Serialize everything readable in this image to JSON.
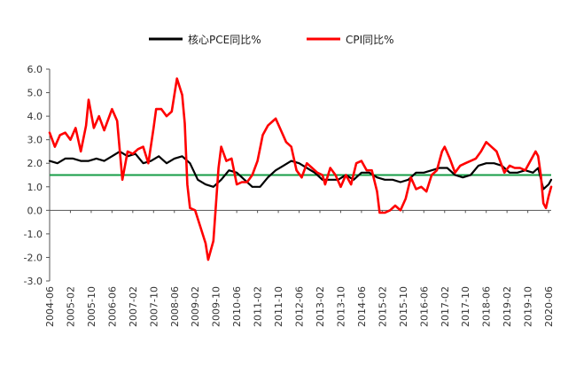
{
  "chart_data": {
    "type": "line",
    "title": "",
    "xlabel": "",
    "ylabel": "",
    "ylim": [
      -3.0,
      6.0
    ],
    "yticks": [
      "6.0",
      "5.0",
      "4.0",
      "3.0",
      "2.0",
      "1.0",
      "0.0",
      "-1.0",
      "-2.0",
      "-3.0"
    ],
    "x_tick_labels": [
      "2004-06",
      "2005-02",
      "2005-10",
      "2006-06",
      "2007-02",
      "2007-10",
      "2008-06",
      "2009-02",
      "2009-10",
      "2010-06",
      "2011-02",
      "2011-10",
      "2012-06",
      "2013-02",
      "2013-10",
      "2014-06",
      "2015-02",
      "2015-10",
      "2016-06",
      "2017-02",
      "2017-10",
      "2018-06",
      "2019-02",
      "2019-10",
      "2020-06"
    ],
    "x_start": "2004-06",
    "x_end": "2020-07",
    "legend_position": "top",
    "grid": false,
    "series": [
      {
        "name": "核心PCE同比%",
        "color": "#000000",
        "points": [
          [
            "2004-06",
            2.1
          ],
          [
            "2004-09",
            2.0
          ],
          [
            "2004-12",
            2.2
          ],
          [
            "2005-03",
            2.2
          ],
          [
            "2005-06",
            2.1
          ],
          [
            "2005-09",
            2.1
          ],
          [
            "2005-12",
            2.2
          ],
          [
            "2006-03",
            2.1
          ],
          [
            "2006-06",
            2.3
          ],
          [
            "2006-09",
            2.5
          ],
          [
            "2006-12",
            2.3
          ],
          [
            "2007-03",
            2.4
          ],
          [
            "2007-06",
            2.0
          ],
          [
            "2007-09",
            2.1
          ],
          [
            "2007-12",
            2.3
          ],
          [
            "2008-03",
            2.0
          ],
          [
            "2008-06",
            2.2
          ],
          [
            "2008-09",
            2.3
          ],
          [
            "2008-12",
            2.0
          ],
          [
            "2009-03",
            1.3
          ],
          [
            "2009-06",
            1.1
          ],
          [
            "2009-09",
            1.0
          ],
          [
            "2009-12",
            1.3
          ],
          [
            "2010-03",
            1.7
          ],
          [
            "2010-06",
            1.6
          ],
          [
            "2010-09",
            1.3
          ],
          [
            "2010-12",
            1.0
          ],
          [
            "2011-03",
            1.0
          ],
          [
            "2011-06",
            1.4
          ],
          [
            "2011-09",
            1.7
          ],
          [
            "2011-12",
            1.9
          ],
          [
            "2012-03",
            2.1
          ],
          [
            "2012-06",
            2.0
          ],
          [
            "2012-09",
            1.8
          ],
          [
            "2012-12",
            1.6
          ],
          [
            "2013-03",
            1.3
          ],
          [
            "2013-06",
            1.3
          ],
          [
            "2013-09",
            1.3
          ],
          [
            "2013-12",
            1.5
          ],
          [
            "2014-03",
            1.3
          ],
          [
            "2014-06",
            1.6
          ],
          [
            "2014-09",
            1.6
          ],
          [
            "2014-12",
            1.4
          ],
          [
            "2015-03",
            1.3
          ],
          [
            "2015-06",
            1.3
          ],
          [
            "2015-09",
            1.2
          ],
          [
            "2015-12",
            1.3
          ],
          [
            "2016-03",
            1.6
          ],
          [
            "2016-06",
            1.6
          ],
          [
            "2016-09",
            1.7
          ],
          [
            "2016-12",
            1.8
          ],
          [
            "2017-03",
            1.8
          ],
          [
            "2017-06",
            1.5
          ],
          [
            "2017-09",
            1.4
          ],
          [
            "2017-12",
            1.5
          ],
          [
            "2018-03",
            1.9
          ],
          [
            "2018-06",
            2.0
          ],
          [
            "2018-09",
            2.0
          ],
          [
            "2018-12",
            1.9
          ],
          [
            "2019-03",
            1.6
          ],
          [
            "2019-06",
            1.6
          ],
          [
            "2019-09",
            1.7
          ],
          [
            "2019-12",
            1.6
          ],
          [
            "2020-02",
            1.8
          ],
          [
            "2020-04",
            0.9
          ],
          [
            "2020-06",
            1.1
          ],
          [
            "2020-07",
            1.3
          ]
        ]
      },
      {
        "name": "CPI同比%",
        "color": "#ff0000",
        "points": [
          [
            "2004-06",
            3.3
          ],
          [
            "2004-08",
            2.7
          ],
          [
            "2004-10",
            3.2
          ],
          [
            "2004-12",
            3.3
          ],
          [
            "2005-02",
            3.0
          ],
          [
            "2005-04",
            3.5
          ],
          [
            "2005-06",
            2.5
          ],
          [
            "2005-08",
            3.6
          ],
          [
            "2005-09",
            4.7
          ],
          [
            "2005-11",
            3.5
          ],
          [
            "2006-01",
            4.0
          ],
          [
            "2006-03",
            3.4
          ],
          [
            "2006-06",
            4.3
          ],
          [
            "2006-08",
            3.8
          ],
          [
            "2006-10",
            1.3
          ],
          [
            "2006-12",
            2.5
          ],
          [
            "2007-02",
            2.4
          ],
          [
            "2007-04",
            2.6
          ],
          [
            "2007-06",
            2.7
          ],
          [
            "2007-08",
            2.0
          ],
          [
            "2007-10",
            3.5
          ],
          [
            "2007-11",
            4.3
          ],
          [
            "2008-01",
            4.3
          ],
          [
            "2008-03",
            4.0
          ],
          [
            "2008-05",
            4.2
          ],
          [
            "2008-07",
            5.6
          ],
          [
            "2008-09",
            4.9
          ],
          [
            "2008-10",
            3.7
          ],
          [
            "2008-11",
            1.1
          ],
          [
            "2008-12",
            0.1
          ],
          [
            "2009-02",
            0.0
          ],
          [
            "2009-04",
            -0.7
          ],
          [
            "2009-06",
            -1.4
          ],
          [
            "2009-07",
            -2.1
          ],
          [
            "2009-09",
            -1.3
          ],
          [
            "2009-11",
            1.8
          ],
          [
            "2009-12",
            2.7
          ],
          [
            "2010-02",
            2.1
          ],
          [
            "2010-04",
            2.2
          ],
          [
            "2010-06",
            1.1
          ],
          [
            "2010-08",
            1.2
          ],
          [
            "2010-10",
            1.2
          ],
          [
            "2010-12",
            1.5
          ],
          [
            "2011-02",
            2.1
          ],
          [
            "2011-04",
            3.2
          ],
          [
            "2011-06",
            3.6
          ],
          [
            "2011-08",
            3.8
          ],
          [
            "2011-09",
            3.9
          ],
          [
            "2011-11",
            3.4
          ],
          [
            "2012-01",
            2.9
          ],
          [
            "2012-03",
            2.7
          ],
          [
            "2012-05",
            1.7
          ],
          [
            "2012-07",
            1.4
          ],
          [
            "2012-09",
            2.0
          ],
          [
            "2012-11",
            1.8
          ],
          [
            "2013-01",
            1.6
          ],
          [
            "2013-03",
            1.5
          ],
          [
            "2013-04",
            1.1
          ],
          [
            "2013-06",
            1.8
          ],
          [
            "2013-08",
            1.5
          ],
          [
            "2013-10",
            1.0
          ],
          [
            "2013-12",
            1.5
          ],
          [
            "2014-02",
            1.1
          ],
          [
            "2014-04",
            2.0
          ],
          [
            "2014-06",
            2.1
          ],
          [
            "2014-08",
            1.7
          ],
          [
            "2014-10",
            1.7
          ],
          [
            "2014-12",
            0.8
          ],
          [
            "2015-01",
            -0.1
          ],
          [
            "2015-03",
            -0.1
          ],
          [
            "2015-05",
            0.0
          ],
          [
            "2015-07",
            0.2
          ],
          [
            "2015-09",
            0.0
          ],
          [
            "2015-11",
            0.5
          ],
          [
            "2016-01",
            1.4
          ],
          [
            "2016-03",
            0.9
          ],
          [
            "2016-05",
            1.0
          ],
          [
            "2016-07",
            0.8
          ],
          [
            "2016-09",
            1.5
          ],
          [
            "2016-11",
            1.7
          ],
          [
            "2017-01",
            2.5
          ],
          [
            "2017-02",
            2.7
          ],
          [
            "2017-04",
            2.2
          ],
          [
            "2017-06",
            1.6
          ],
          [
            "2017-08",
            1.9
          ],
          [
            "2017-10",
            2.0
          ],
          [
            "2017-12",
            2.1
          ],
          [
            "2018-02",
            2.2
          ],
          [
            "2018-04",
            2.5
          ],
          [
            "2018-06",
            2.9
          ],
          [
            "2018-08",
            2.7
          ],
          [
            "2018-10",
            2.5
          ],
          [
            "2018-12",
            1.9
          ],
          [
            "2019-01",
            1.6
          ],
          [
            "2019-03",
            1.9
          ],
          [
            "2019-05",
            1.8
          ],
          [
            "2019-07",
            1.8
          ],
          [
            "2019-09",
            1.7
          ],
          [
            "2019-11",
            2.1
          ],
          [
            "2020-01",
            2.5
          ],
          [
            "2020-02",
            2.3
          ],
          [
            "2020-03",
            1.5
          ],
          [
            "2020-04",
            0.3
          ],
          [
            "2020-05",
            0.1
          ],
          [
            "2020-06",
            0.6
          ],
          [
            "2020-07",
            1.0
          ]
        ]
      }
    ],
    "reference_lines": [
      {
        "value": 1.5,
        "color": "#169c46"
      }
    ]
  }
}
